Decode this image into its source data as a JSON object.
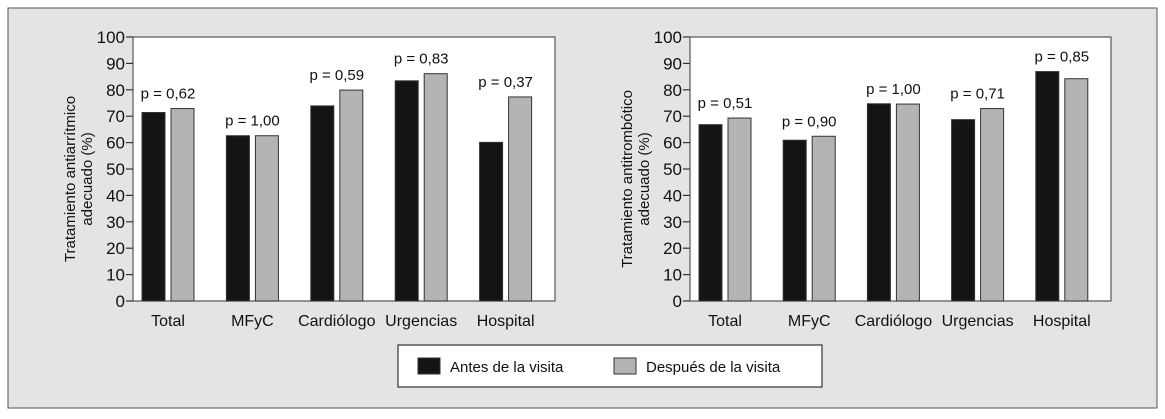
{
  "colors": {
    "before": "#141414",
    "after": "#b4b4b4",
    "panel": "#e4e4e4",
    "plot": "#ffffff"
  },
  "legend": {
    "before": "Antes de la visita",
    "after": "Después de la visita"
  },
  "chart_data": [
    {
      "type": "bar",
      "title": "",
      "ylabel": [
        "Tratamiento antiarrítmico",
        "adecuado (%)"
      ],
      "xlabel": "",
      "ylim": [
        0,
        100
      ],
      "yticks": [
        0,
        10,
        20,
        30,
        40,
        50,
        60,
        70,
        80,
        90,
        100
      ],
      "categories": [
        "Total",
        "MFyC",
        "Cardiólogo",
        "Urgencias",
        "Hospital"
      ],
      "series": [
        {
          "name": "Antes de la visita",
          "values": [
            71.4,
            62.6,
            73.9,
            83.4,
            60.1
          ]
        },
        {
          "name": "Después de la visita",
          "values": [
            72.9,
            62.6,
            79.9,
            86.1,
            77.3
          ]
        }
      ],
      "annotations": [
        "p = 0,62",
        "p = 1,00",
        "p = 0,59",
        "p = 0,83",
        "p = 0,37"
      ]
    },
    {
      "type": "bar",
      "title": "",
      "ylabel": [
        "Tratamiento antitrombótico",
        "adecuado (%)"
      ],
      "xlabel": "",
      "ylim": [
        0,
        100
      ],
      "yticks": [
        0,
        10,
        20,
        30,
        40,
        50,
        60,
        70,
        80,
        90,
        100
      ],
      "categories": [
        "Total",
        "MFyC",
        "Cardiólogo",
        "Urgencias",
        "Hospital"
      ],
      "series": [
        {
          "name": "Antes de la visita",
          "values": [
            66.8,
            60.9,
            74.7,
            68.7,
            86.9
          ]
        },
        {
          "name": "Después de la visita",
          "values": [
            69.3,
            62.4,
            74.6,
            72.9,
            84.2
          ]
        }
      ],
      "annotations": [
        "p = 0,51",
        "p = 0,90",
        "p = 1,00",
        "p = 0,71",
        "p = 0,85"
      ]
    }
  ]
}
